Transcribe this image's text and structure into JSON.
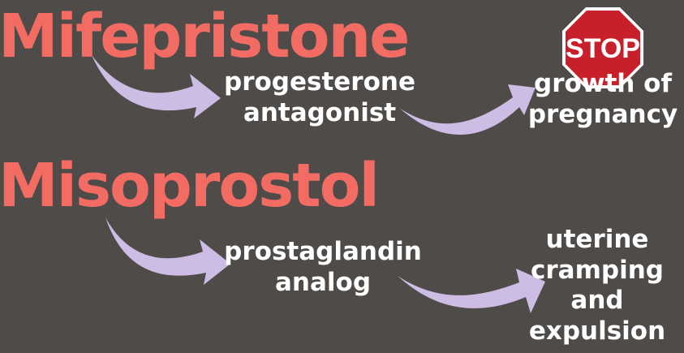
{
  "diagram": {
    "drugs": [
      {
        "name": "Mifepristone",
        "mechanism": [
          "progesterone",
          "antagonist"
        ],
        "effect": [
          "growth of",
          "pregnancy"
        ]
      },
      {
        "name": "Misoprostol",
        "mechanism": [
          "prostaglandin",
          "analog"
        ],
        "effect": [
          "uterine",
          "cramping",
          "and",
          "expulsion"
        ]
      }
    ],
    "stop_sign": {
      "text": "STOP",
      "color": "#c8202a"
    },
    "colors": {
      "title": "#f36c64",
      "arrow": "#cdbde4",
      "background": "#4f4b49",
      "label": "#ffffff"
    }
  }
}
